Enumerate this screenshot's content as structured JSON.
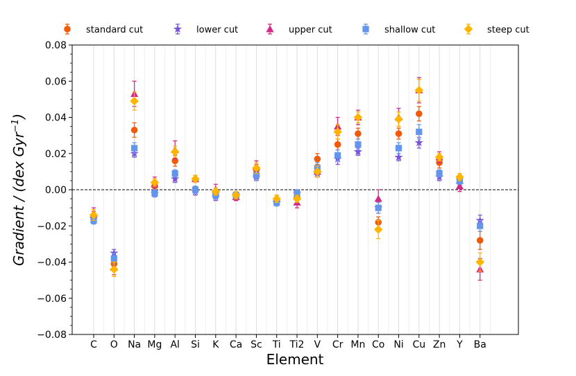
{
  "chart_data": {
    "type": "scatter",
    "title": "",
    "xlabel": "Element",
    "ylabel": "Gradient / (dex Gyr",
    "ylabel_exponent": "−1",
    "ylabel_close": ")",
    "ylim": [
      -0.08,
      0.08
    ],
    "yticks": [
      -0.08,
      -0.06,
      -0.04,
      -0.02,
      0.0,
      0.02,
      0.04,
      0.06,
      0.08
    ],
    "ytick_labels": [
      "−0.08",
      "−0.06",
      "−0.04",
      "−0.02",
      "0.00",
      "0.02",
      "0.04",
      "0.06",
      "0.08"
    ],
    "categories": [
      "C",
      "O",
      "Na",
      "Mg",
      "Al",
      "Si",
      "K",
      "Ca",
      "Sc",
      "Ti",
      "Ti2",
      "V",
      "Cr",
      "Mn",
      "Co",
      "Ni",
      "Cu",
      "Zn",
      "Y",
      "Ba"
    ],
    "reference_line": 0.0,
    "legend_position": "top",
    "series": [
      {
        "name": "standard cut",
        "color": "#f05a0a",
        "marker": "circle",
        "values": [
          -0.015,
          -0.041,
          0.033,
          0.002,
          0.016,
          0.0,
          -0.002,
          -0.004,
          0.011,
          -0.006,
          -0.004,
          0.017,
          0.025,
          0.031,
          -0.018,
          0.031,
          0.042,
          0.015,
          0.006,
          -0.028
        ],
        "errors": [
          0.003,
          0.003,
          0.004,
          0.002,
          0.003,
          0.002,
          0.002,
          0.002,
          0.003,
          0.002,
          0.002,
          0.003,
          0.003,
          0.003,
          0.003,
          0.003,
          0.004,
          0.003,
          0.002,
          0.005
        ]
      },
      {
        "name": "lower cut",
        "color": "#7b55d9",
        "marker": "star",
        "values": [
          -0.016,
          -0.035,
          0.02,
          -0.002,
          0.006,
          -0.001,
          -0.004,
          -0.003,
          0.007,
          -0.007,
          -0.002,
          0.009,
          0.017,
          0.021,
          -0.01,
          0.018,
          0.026,
          0.007,
          0.003,
          -0.017
        ],
        "errors": [
          0.002,
          0.002,
          0.002,
          0.002,
          0.002,
          0.002,
          0.002,
          0.002,
          0.002,
          0.002,
          0.002,
          0.002,
          0.003,
          0.002,
          0.003,
          0.002,
          0.003,
          0.002,
          0.002,
          0.003
        ]
      },
      {
        "name": "upper cut",
        "color": "#d42a85",
        "marker": "triangle",
        "values": [
          -0.013,
          -0.043,
          0.053,
          0.003,
          0.022,
          0.006,
          0.0,
          -0.004,
          0.013,
          -0.005,
          -0.007,
          0.01,
          0.035,
          0.04,
          -0.005,
          0.04,
          0.055,
          0.018,
          0.002,
          -0.044
        ],
        "errors": [
          0.003,
          0.004,
          0.007,
          0.004,
          0.005,
          0.002,
          0.003,
          0.002,
          0.003,
          0.002,
          0.003,
          0.003,
          0.005,
          0.004,
          0.005,
          0.005,
          0.007,
          0.003,
          0.003,
          0.006
        ]
      },
      {
        "name": "shallow cut",
        "color": "#6495ed",
        "marker": "square",
        "values": [
          -0.017,
          -0.038,
          0.023,
          -0.002,
          0.009,
          0.0,
          -0.003,
          -0.003,
          0.008,
          -0.007,
          -0.002,
          0.012,
          0.019,
          0.025,
          -0.01,
          0.023,
          0.032,
          0.009,
          0.005,
          -0.02
        ],
        "errors": [
          0.002,
          0.003,
          0.003,
          0.002,
          0.002,
          0.002,
          0.002,
          0.002,
          0.003,
          0.002,
          0.002,
          0.003,
          0.003,
          0.003,
          0.003,
          0.003,
          0.004,
          0.002,
          0.002,
          0.003
        ]
      },
      {
        "name": "steep cut",
        "color": "#ffb400",
        "marker": "diamond",
        "values": [
          -0.014,
          -0.044,
          0.049,
          0.004,
          0.021,
          0.006,
          -0.001,
          -0.003,
          0.012,
          -0.005,
          -0.005,
          0.01,
          0.032,
          0.04,
          -0.022,
          0.039,
          0.055,
          0.018,
          0.007,
          -0.04
        ],
        "errors": [
          0.003,
          0.004,
          0.005,
          0.002,
          0.003,
          0.002,
          0.002,
          0.002,
          0.003,
          0.002,
          0.002,
          0.003,
          0.004,
          0.003,
          0.005,
          0.004,
          0.006,
          0.002,
          0.002,
          0.005
        ]
      }
    ]
  }
}
